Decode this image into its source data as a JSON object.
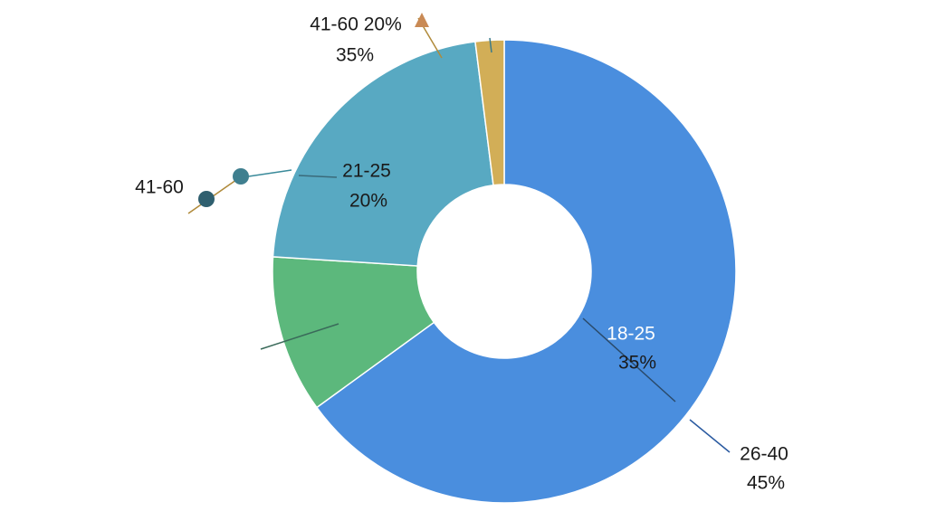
{
  "chart_data": {
    "type": "donut",
    "categories": [
      null,
      null,
      null,
      null
    ],
    "values": [
      65,
      11,
      22,
      2
    ],
    "colors": [
      "#4a8ede",
      "#5cb87c",
      "#58a9c2",
      "#d2ae57"
    ],
    "annotations": [
      "41-60 20%",
      "35%",
      "41-60",
      "21-25",
      "20%",
      "18-25",
      "35%",
      "26-40",
      "45%"
    ]
  }
}
